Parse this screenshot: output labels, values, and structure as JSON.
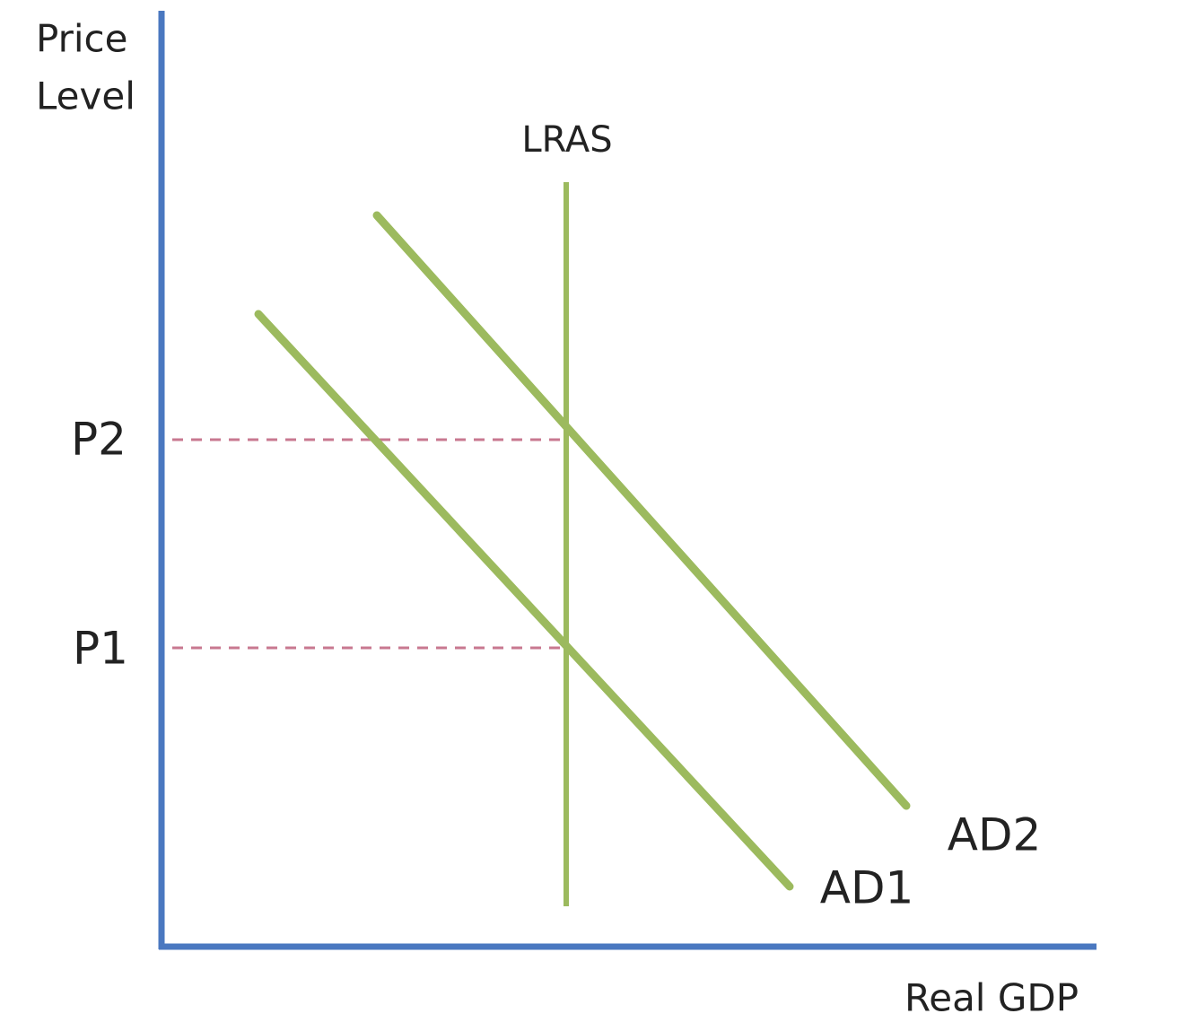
{
  "axes": {
    "y_label": [
      "Price",
      "Level"
    ],
    "x_label": "Real GDP"
  },
  "curves": {
    "lras": "LRAS",
    "ad2": "AD2",
    "ad1": "AD1"
  },
  "price_levels": [
    "P2",
    "P1"
  ]
}
